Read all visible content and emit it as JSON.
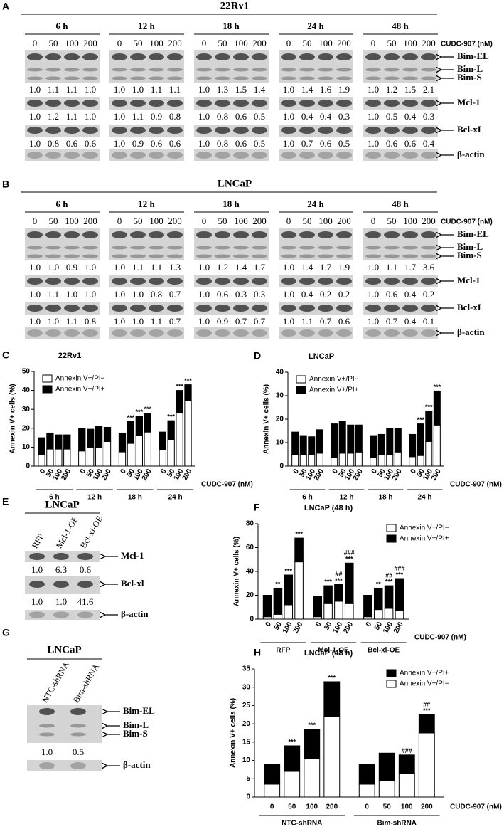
{
  "blots": {
    "A": {
      "letter": "A",
      "title": "22Rv1",
      "times": [
        "6 h",
        "12 h",
        "18 h",
        "24 h",
        "48 h"
      ],
      "doses": [
        "0",
        "50",
        "100",
        "200"
      ],
      "dose_label": "CUDC-907 (nM)",
      "rows": [
        {
          "bands": [
            "Bim-EL",
            "Bim-L",
            "Bim-S"
          ],
          "quant": [
            [
              "1.0",
              "1.1",
              "1.1",
              "1.0"
            ],
            [
              "1.0",
              "1.0",
              "1.1",
              "1.1"
            ],
            [
              "1.0",
              "1.3",
              "1.5",
              "1.4"
            ],
            [
              "1.0",
              "1.4",
              "1.6",
              "1.9"
            ],
            [
              "1.0",
              "1.2",
              "1.5",
              "2.1"
            ]
          ]
        },
        {
          "bands": [
            "Mcl-1"
          ],
          "quant": [
            [
              "1.0",
              "1.2",
              "1.1",
              "1.0"
            ],
            [
              "1.0",
              "1.1",
              "0.9",
              "0.8"
            ],
            [
              "1.0",
              "0.8",
              "0.6",
              "0.5"
            ],
            [
              "1.0",
              "0.4",
              "0.4",
              "0.3"
            ],
            [
              "1.0",
              "0.5",
              "0.4",
              "0.3"
            ]
          ]
        },
        {
          "bands": [
            "Bcl-xL"
          ],
          "quant": [
            [
              "1.0",
              "0.8",
              "0.6",
              "0.6"
            ],
            [
              "1.0",
              "0.9",
              "0.6",
              "0.6"
            ],
            [
              "1.0",
              "0.8",
              "0.6",
              "0.5"
            ],
            [
              "1.0",
              "0.7",
              "0.6",
              "0.5"
            ],
            [
              "1.0",
              "0.6",
              "0.6",
              "0.4"
            ]
          ]
        },
        {
          "bands": [
            "β-actin"
          ]
        }
      ]
    },
    "B": {
      "letter": "B",
      "title": "LNCaP",
      "times": [
        "6 h",
        "12 h",
        "18 h",
        "24 h",
        "48 h"
      ],
      "doses": [
        "0",
        "50",
        "100",
        "200"
      ],
      "dose_label": "CUDC-907 (nM)",
      "rows": [
        {
          "bands": [
            "Bim-EL",
            "Bim-L",
            "Bim-S"
          ],
          "quant": [
            [
              "1.0",
              "1.0",
              "0.9",
              "1.0"
            ],
            [
              "1.0",
              "1.1",
              "1.1",
              "1.3"
            ],
            [
              "1.0",
              "1.2",
              "1.4",
              "1.7"
            ],
            [
              "1.0",
              "1.4",
              "1.7",
              "1.9"
            ],
            [
              "1.0",
              "1.1",
              "1.7",
              "3.6"
            ]
          ]
        },
        {
          "bands": [
            "Mcl-1"
          ],
          "quant": [
            [
              "1.0",
              "1.1",
              "1.0",
              "1.0"
            ],
            [
              "1.0",
              "1.0",
              "0.8",
              "0.7"
            ],
            [
              "1.0",
              "0.6",
              "0.3",
              "0.3"
            ],
            [
              "1.0",
              "0.4",
              "0.2",
              "0.2"
            ],
            [
              "1.0",
              "0.6",
              "0.4",
              "0.2"
            ]
          ]
        },
        {
          "bands": [
            "Bcl-xL"
          ],
          "quant": [
            [
              "1.0",
              "1.0",
              "1.1",
              "0.8"
            ],
            [
              "1.0",
              "1.0",
              "1.1",
              "0.7"
            ],
            [
              "1.0",
              "0.9",
              "0.7",
              "0.7"
            ],
            [
              "1.0",
              "1.1",
              "0.7",
              "0.6"
            ],
            [
              "1.0",
              "0.7",
              "0.4",
              "0.1"
            ]
          ]
        },
        {
          "bands": [
            "β-actin"
          ]
        }
      ]
    },
    "E": {
      "letter": "E",
      "title": "LNCaP",
      "lanes": [
        "RFP",
        "Mcl-1-OE",
        "Bcl-xl-OE"
      ],
      "rows": [
        {
          "bands": [
            "Mcl-1"
          ],
          "quant": [
            "1.0",
            "6.3",
            "0.6"
          ]
        },
        {
          "bands": [
            "Bcl-xl"
          ],
          "quant": [
            "1.0",
            "1.0",
            "41.6"
          ]
        },
        {
          "bands": [
            "β-actin"
          ]
        }
      ]
    },
    "G": {
      "letter": "G",
      "title": "LNCaP",
      "lanes": [
        "NTC-shRNA",
        "Bim-shRNA"
      ],
      "rows": [
        {
          "bands": [
            "Bim-EL",
            "Bim-L",
            "Bim-S"
          ],
          "quant": [
            "1.0",
            "0.5"
          ]
        },
        {
          "bands": [
            "β-actin"
          ]
        }
      ]
    }
  },
  "chart_data": [
    {
      "type": "bar",
      "stacked": true,
      "letter": "C",
      "title": "22Rv1",
      "ylabel": "Annexin V+ cells (%)",
      "xlabel": "CUDC-907 (nM)",
      "groups": [
        "6 h",
        "12 h",
        "18 h",
        "24 h"
      ],
      "categories": [
        "0",
        "50",
        "100",
        "200",
        "0",
        "50",
        "100",
        "200",
        "0",
        "50",
        "100",
        "200",
        "0",
        "50",
        "100",
        "200"
      ],
      "series": [
        {
          "name": "Annexin V+/PI−",
          "color": "#ffffff",
          "values": [
            6,
            9,
            9,
            9,
            8,
            10,
            10,
            13,
            7.5,
            12,
            16,
            18,
            8.5,
            14,
            28,
            34.5
          ]
        },
        {
          "name": "Annexin V+/PI+",
          "color": "#000000",
          "values": [
            9,
            8.5,
            7.5,
            7.5,
            12,
            9.5,
            11,
            7.5,
            10,
            11.5,
            10.5,
            10,
            9.5,
            10,
            12,
            8.5
          ]
        }
      ],
      "significance": [
        null,
        null,
        null,
        null,
        null,
        null,
        null,
        null,
        null,
        "***",
        "***",
        "***",
        null,
        "***",
        "***",
        "***"
      ],
      "ylim": [
        0,
        50
      ],
      "yticks": [
        0,
        10,
        20,
        30,
        40,
        50
      ],
      "x_labels_rotated": true,
      "legend": "top-left"
    },
    {
      "type": "bar",
      "stacked": true,
      "letter": "D",
      "title": "LNCaP",
      "ylabel": "Annexin V+ cells (%)",
      "xlabel": "CUDC-907 (nM)",
      "groups": [
        "6 h",
        "12 h",
        "18 h",
        "24 h"
      ],
      "categories": [
        "0",
        "50",
        "100",
        "200",
        "0",
        "50",
        "100",
        "200",
        "0",
        "50",
        "100",
        "200",
        "0",
        "50",
        "100",
        "200"
      ],
      "series": [
        {
          "name": "Annexin V+/PI−",
          "color": "#ffffff",
          "values": [
            5,
            5,
            5,
            5.5,
            3.5,
            5.5,
            5.5,
            6,
            3.5,
            5,
            5,
            6,
            4,
            4.5,
            10.5,
            17.5
          ]
        },
        {
          "name": "Annexin V+/PI+",
          "color": "#000000",
          "values": [
            9.5,
            8,
            7.5,
            10,
            14.5,
            13.5,
            12,
            11.5,
            9.5,
            8.5,
            11,
            10,
            9.5,
            13.5,
            13,
            14.5
          ]
        }
      ],
      "significance": [
        null,
        null,
        null,
        null,
        null,
        null,
        null,
        null,
        null,
        null,
        null,
        null,
        null,
        "***",
        "***",
        "***"
      ],
      "ylim": [
        0,
        40
      ],
      "yticks": [
        0,
        10,
        20,
        30,
        40
      ],
      "x_labels_rotated": true,
      "legend": "top-left"
    },
    {
      "type": "bar",
      "stacked": true,
      "letter": "F",
      "title": "LNCaP (48 h)",
      "ylabel": "Annexin V+ cells (%)",
      "xlabel": "CUDC-907 (nM)",
      "groups": [
        "RFP",
        "Mcl-1-OE",
        "Bcl-xl-OE"
      ],
      "categories": [
        "0",
        "50",
        "100",
        "200",
        "0",
        "50",
        "100",
        "200",
        "0",
        "50",
        "100",
        "200"
      ],
      "series": [
        {
          "name": "Annexin V+/PI−",
          "color": "#ffffff",
          "values": [
            2,
            4,
            12,
            48,
            2,
            13,
            15,
            13,
            2,
            8,
            9,
            7
          ]
        },
        {
          "name": "Annexin V+/PI+",
          "color": "#000000",
          "values": [
            18,
            22,
            25,
            20,
            17,
            15,
            14,
            34,
            18,
            18,
            19,
            27
          ]
        }
      ],
      "significance": [
        null,
        "**",
        "***",
        "***",
        null,
        "***",
        "***",
        "***",
        null,
        "**",
        "***",
        "***"
      ],
      "significance_upper": [
        null,
        null,
        null,
        null,
        null,
        null,
        "##",
        "###",
        null,
        null,
        "##",
        "###"
      ],
      "ylim": [
        0,
        80
      ],
      "yticks": [
        0,
        20,
        40,
        60,
        80
      ],
      "x_labels_rotated": true,
      "legend": "top-right"
    },
    {
      "type": "bar",
      "stacked": true,
      "letter": "H",
      "title": "LNCaP (48 h)",
      "ylabel": "Annexin V+ cells (%)",
      "xlabel": "CUDC-907 (nM)",
      "groups": [
        "NTC-shRNA",
        "Bim-shRNA"
      ],
      "categories": [
        "0",
        "50",
        "100",
        "200",
        "0",
        "50",
        "100",
        "200"
      ],
      "series": [
        {
          "name": "Annexin V+/PI−",
          "color": "#ffffff",
          "values": [
            3.5,
            7,
            10.5,
            22,
            3.5,
            4.5,
            6.5,
            17.5
          ]
        },
        {
          "name": "Annexin V+/PI+",
          "color": "#000000",
          "values": [
            5.5,
            7,
            8,
            9.5,
            5.5,
            7.5,
            5,
            5
          ]
        }
      ],
      "significance": [
        null,
        "***",
        "***",
        "***",
        null,
        null,
        "###",
        "***"
      ],
      "significance_upper": [
        null,
        null,
        null,
        null,
        null,
        null,
        null,
        "##"
      ],
      "ylim": [
        0,
        35
      ],
      "yticks": [
        0,
        5,
        10,
        15,
        20,
        25,
        30,
        35
      ],
      "x_labels_rotated": false,
      "legend": "top-right",
      "legend_reversed": true
    }
  ]
}
